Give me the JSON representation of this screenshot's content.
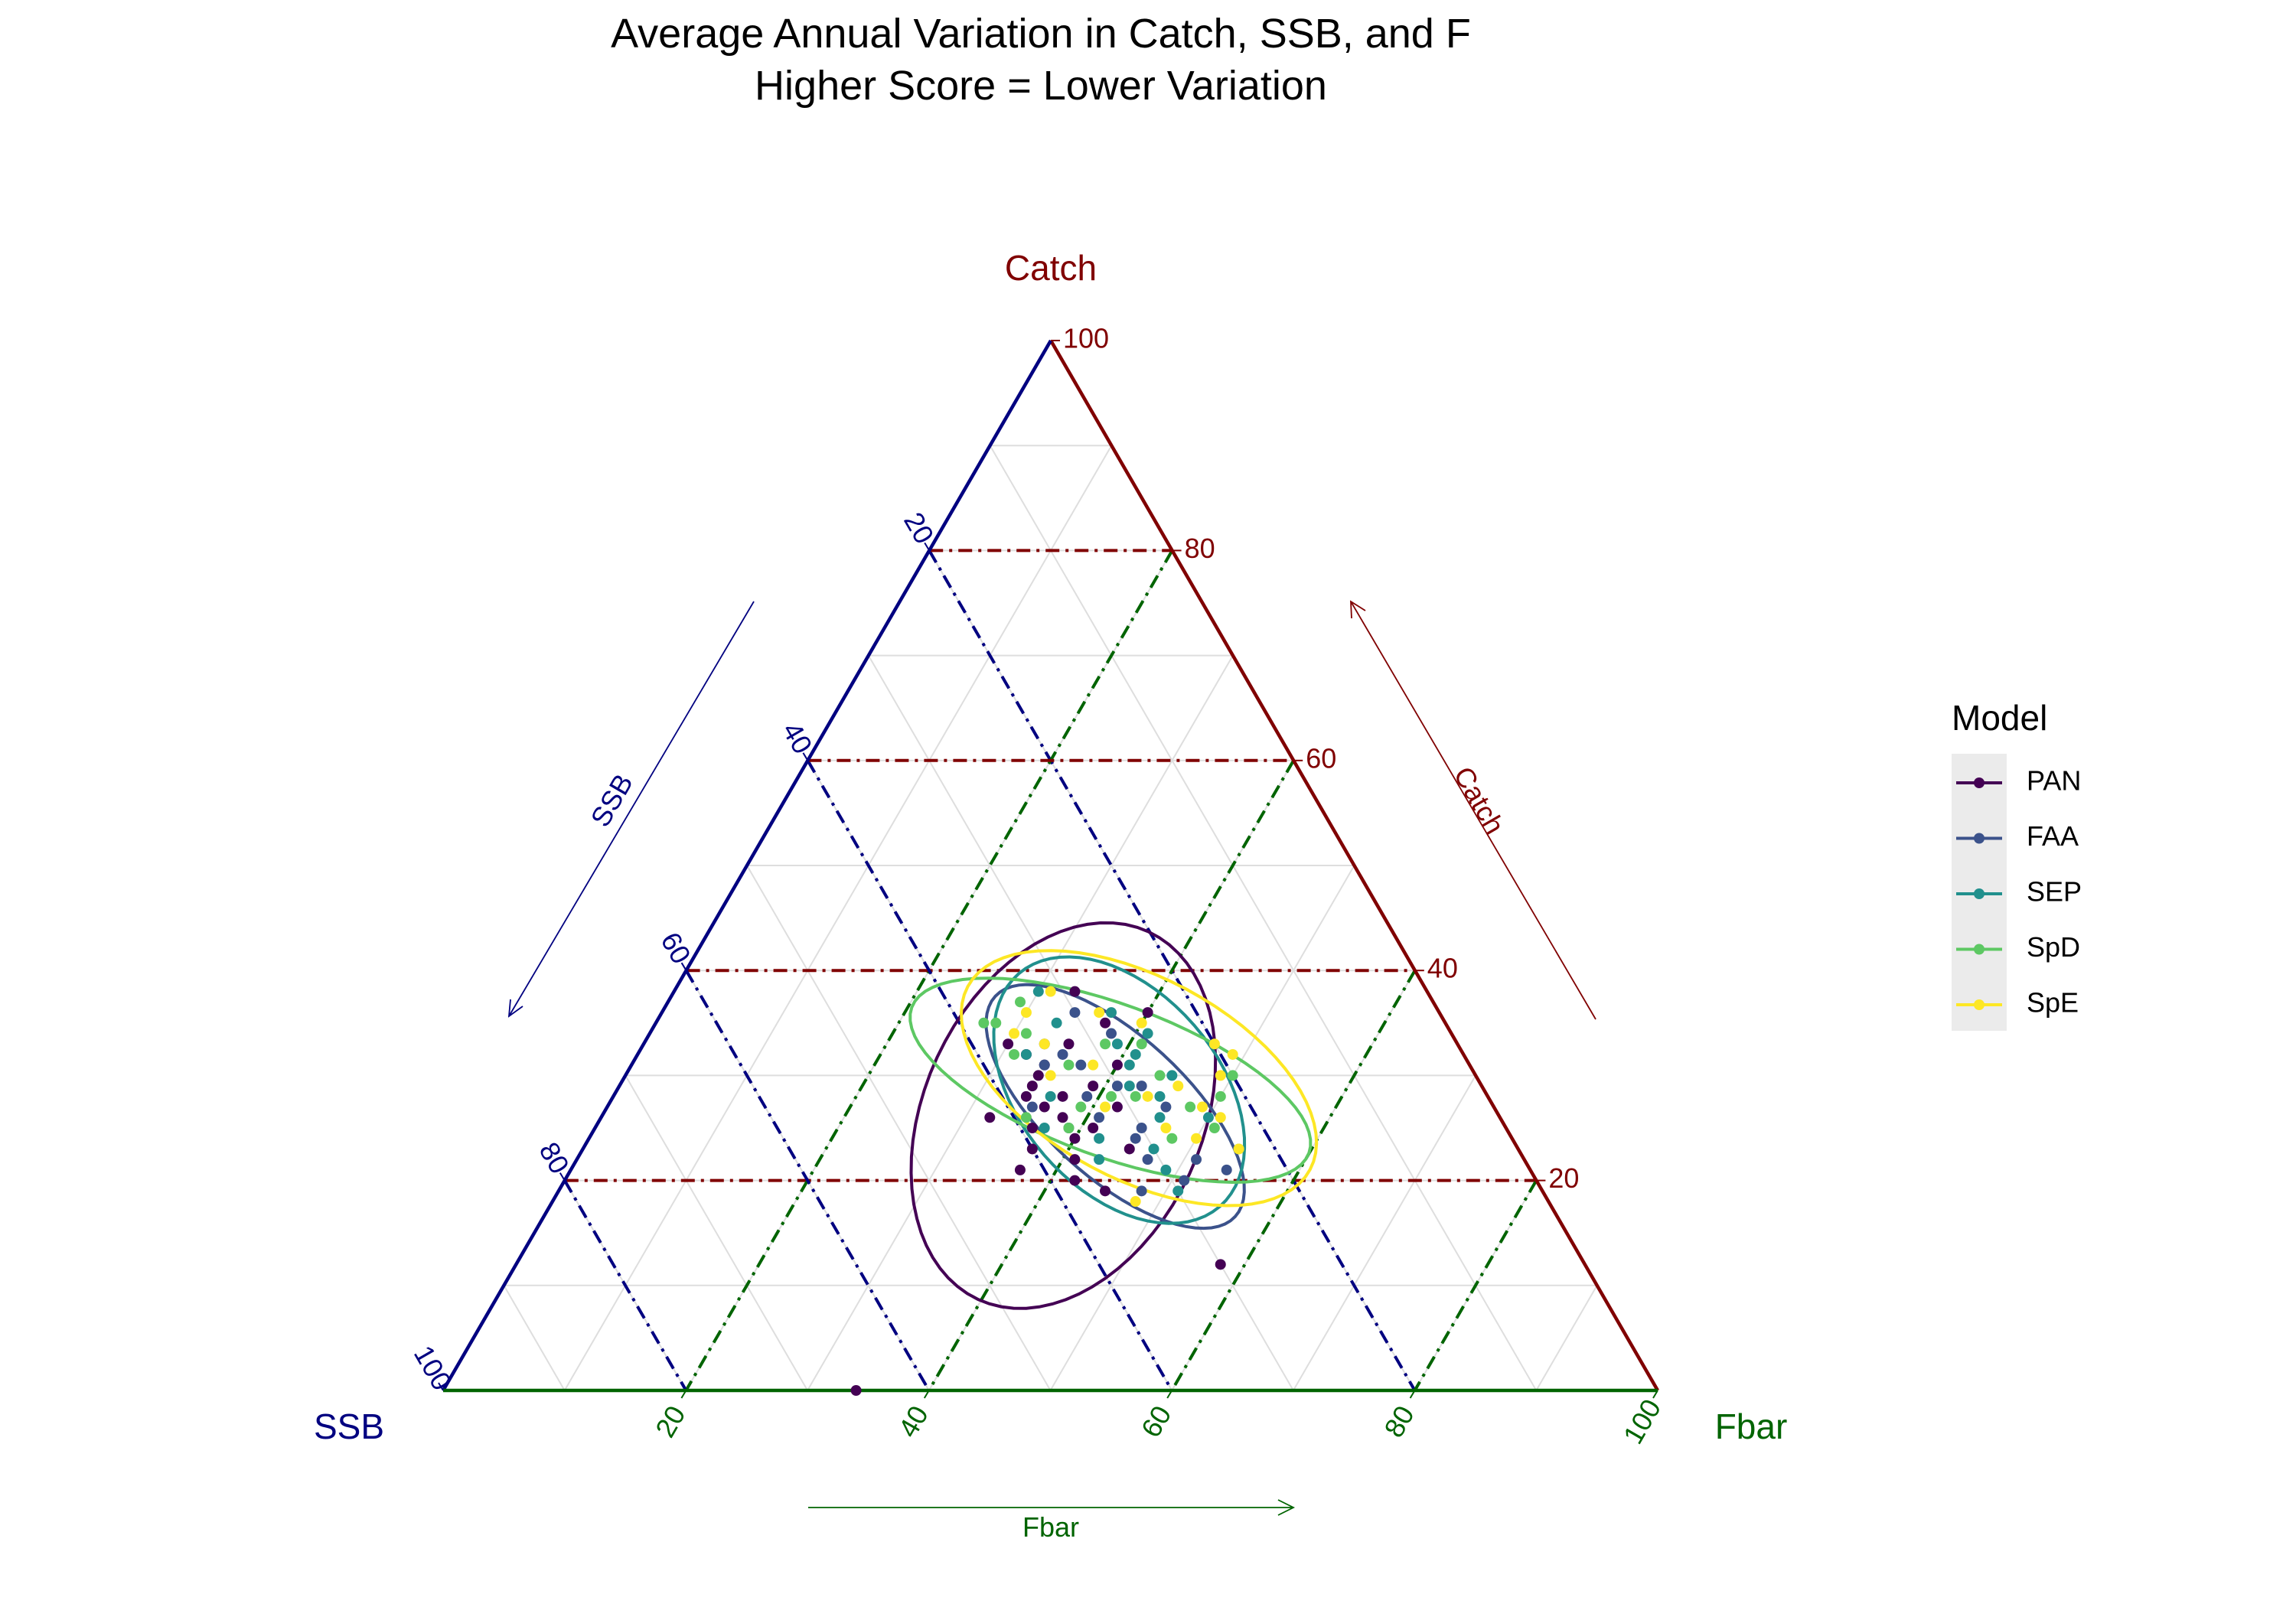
{
  "chart_data": {
    "type": "scatter",
    "subtype": "ternary",
    "title": "Average Annual Variation in Catch, SSB, and F",
    "subtitle": "Higher Score = Lower Variation",
    "axes": {
      "top": {
        "name": "Catch",
        "color": "#800000"
      },
      "left": {
        "name": "SSB",
        "color": "#000080"
      },
      "right": {
        "name": "Fbar",
        "color": "#006400"
      }
    },
    "ticks": [
      20,
      40,
      60,
      80,
      100
    ],
    "range": [
      0,
      100
    ],
    "grid": true,
    "legend_position": "right",
    "legend": {
      "title": "Model",
      "items": [
        {
          "name": "PAN",
          "color": "#440154"
        },
        {
          "name": "FAA",
          "color": "#3b528b"
        },
        {
          "name": "SEP",
          "color": "#21908d"
        },
        {
          "name": "SpD",
          "color": "#5dc863"
        },
        {
          "name": "SpE",
          "color": "#fde725"
        }
      ]
    },
    "series": [
      {
        "name": "PAN",
        "color": "#440154",
        "points": [
          [
            31,
            35,
            34
          ],
          [
            28,
            35,
            37
          ],
          [
            29,
            32,
            39
          ],
          [
            27,
            31,
            42
          ],
          [
            22,
            37,
            41
          ],
          [
            20,
            38,
            42
          ],
          [
            25,
            34,
            41
          ],
          [
            33,
            32,
            35
          ],
          [
            31,
            29,
            40
          ],
          [
            35,
            28,
            37
          ],
          [
            26,
            42,
            32
          ],
          [
            23,
            40,
            37
          ],
          [
            19,
            36,
            45
          ],
          [
            12,
            30,
            58
          ],
          [
            30,
            36,
            34
          ],
          [
            28,
            38,
            34
          ],
          [
            24,
            36,
            40
          ],
          [
            21,
            42,
            37
          ],
          [
            33,
            37,
            30
          ],
          [
            0,
            66,
            34
          ],
          [
            38,
            29,
            33
          ],
          [
            27,
            37,
            36
          ],
          [
            29,
            37,
            34
          ],
          [
            23,
            32,
            45
          ],
          [
            36,
            24,
            40
          ],
          [
            25,
            39,
            36
          ],
          [
            32,
            36,
            32
          ],
          [
            26,
            36,
            38
          ]
        ]
      },
      {
        "name": "FAA",
        "color": "#3b528b",
        "points": [
          [
            32,
            33,
            35
          ],
          [
            29,
            30,
            41
          ],
          [
            25,
            30,
            45
          ],
          [
            27,
            27,
            46
          ],
          [
            22,
            27,
            51
          ],
          [
            36,
            30,
            34
          ],
          [
            31,
            35,
            34
          ],
          [
            22,
            31,
            47
          ],
          [
            26,
            33,
            41
          ],
          [
            34,
            28,
            38
          ],
          [
            25,
            36,
            39
          ],
          [
            20,
            29,
            51
          ],
          [
            19,
            33,
            48
          ],
          [
            33,
            34,
            33
          ],
          [
            29,
            28,
            43
          ],
          [
            21,
            25,
            54
          ],
          [
            27,
            38,
            35
          ],
          [
            31,
            32,
            37
          ],
          [
            24,
            31,
            45
          ],
          [
            28,
            33,
            39
          ]
        ]
      },
      {
        "name": "SEP",
        "color": "#21908d",
        "points": [
          [
            38,
            32,
            30
          ],
          [
            33,
            28,
            39
          ],
          [
            29,
            29,
            42
          ],
          [
            26,
            28,
            46
          ],
          [
            23,
            30,
            47
          ],
          [
            32,
            27,
            41
          ],
          [
            35,
            32,
            33
          ],
          [
            30,
            25,
            45
          ],
          [
            28,
            36,
            36
          ],
          [
            25,
            38,
            37
          ],
          [
            21,
            30,
            49
          ],
          [
            34,
            25,
            41
          ],
          [
            32,
            36,
            32
          ],
          [
            24,
            34,
            42
          ],
          [
            26,
            24,
            50
          ],
          [
            22,
            35,
            43
          ],
          [
            19,
            30,
            51
          ],
          [
            28,
            27,
            45
          ],
          [
            31,
            28,
            41
          ],
          [
            36,
            27,
            37
          ]
        ]
      },
      {
        "name": "SpD",
        "color": "#5dc863",
        "points": [
          [
            37,
            34,
            29
          ],
          [
            33,
            29,
            38
          ],
          [
            27,
            25,
            48
          ],
          [
            30,
            20,
            50
          ],
          [
            25,
            24,
            51
          ],
          [
            32,
            37,
            31
          ],
          [
            35,
            38,
            27
          ],
          [
            31,
            33,
            36
          ],
          [
            25,
            36,
            39
          ],
          [
            28,
            31,
            41
          ],
          [
            30,
            26,
            44
          ],
          [
            28,
            22,
            50
          ],
          [
            23,
            23,
            54
          ],
          [
            35,
            37,
            28
          ],
          [
            34,
            35,
            31
          ],
          [
            27,
            34,
            39
          ],
          [
            24,
            28,
            48
          ],
          [
            33,
            26,
            41
          ],
          [
            28,
            29,
            43
          ],
          [
            26,
            39,
            35
          ]
        ]
      },
      {
        "name": "SpE",
        "color": "#fde725",
        "points": [
          [
            38,
            31,
            31
          ],
          [
            35,
            25,
            40
          ],
          [
            32,
            19,
            49
          ],
          [
            30,
            21,
            49
          ],
          [
            25,
            28,
            47
          ],
          [
            23,
            23,
            54
          ],
          [
            36,
            34,
            30
          ],
          [
            33,
            34,
            33
          ],
          [
            28,
            28,
            44
          ],
          [
            27,
            32,
            41
          ],
          [
            24,
            26,
            50
          ],
          [
            31,
            31,
            38
          ],
          [
            26,
            23,
            51
          ],
          [
            29,
            25,
            46
          ],
          [
            34,
            36,
            30
          ],
          [
            36,
            28,
            36
          ],
          [
            33,
            20,
            47
          ],
          [
            18,
            34,
            48
          ],
          [
            30,
            35,
            35
          ],
          [
            27,
            24,
            49
          ]
        ]
      }
    ],
    "ellipses": [
      {
        "name": "PAN",
        "color": "#440154"
      },
      {
        "name": "FAA",
        "color": "#3b528b"
      },
      {
        "name": "SEP",
        "color": "#21908d"
      },
      {
        "name": "SpD",
        "color": "#5dc863"
      },
      {
        "name": "SpE",
        "color": "#fde725"
      }
    ]
  }
}
